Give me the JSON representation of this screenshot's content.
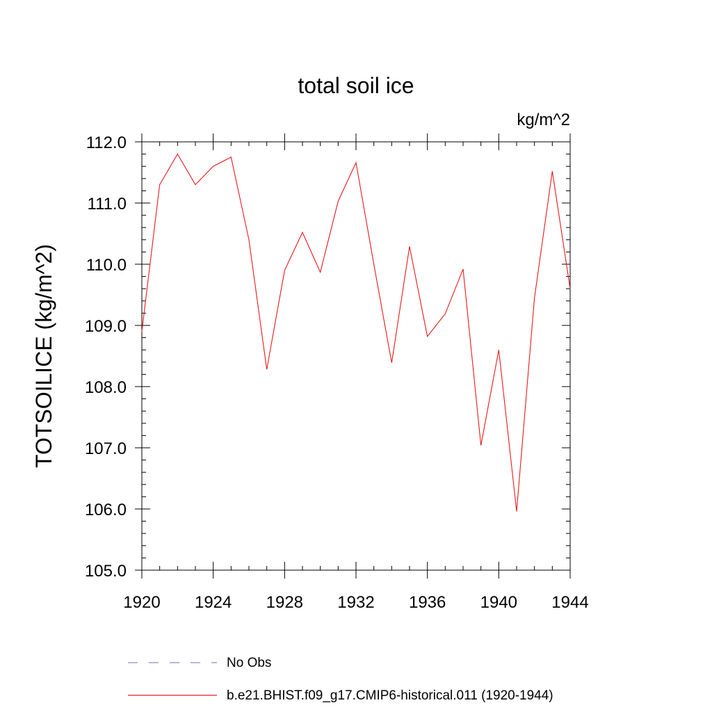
{
  "chart_data": {
    "type": "line",
    "title": "total soil ice",
    "units": "kg/m^2",
    "ylabel": "TOTSOILICE  (kg/m^2)",
    "xlabel": "",
    "xlim": [
      1920,
      1944
    ],
    "ylim": [
      105.0,
      112.0
    ],
    "x_ticks": [
      "1920",
      "1924",
      "1928",
      "1932",
      "1936",
      "1940",
      "1944"
    ],
    "y_ticks": [
      "105.0",
      "106.0",
      "107.0",
      "108.0",
      "109.0",
      "110.0",
      "111.0",
      "112.0"
    ],
    "grid": false,
    "legend_position": "bottom",
    "series": [
      {
        "name": "b.e21.BHIST.f09_g17.CMIP6-historical.011 (1920-1944)",
        "color": "#e8191a",
        "style": "solid",
        "x": [
          1920,
          1921,
          1922,
          1923,
          1924,
          1925,
          1926,
          1927,
          1928,
          1929,
          1930,
          1931,
          1932,
          1933,
          1934,
          1935,
          1936,
          1937,
          1938,
          1939,
          1940,
          1941,
          1942,
          1943,
          1944
        ],
        "values": [
          108.9,
          111.3,
          111.8,
          111.3,
          111.6,
          111.75,
          110.4,
          108.28,
          109.9,
          110.52,
          109.87,
          111.03,
          111.66,
          110.0,
          108.39,
          110.29,
          108.82,
          109.19,
          109.92,
          107.04,
          108.6,
          105.96,
          109.45,
          111.52,
          109.6
        ]
      }
    ],
    "legend": [
      {
        "label": "No Obs",
        "color": "#8a8ac8",
        "style": "dashed"
      },
      {
        "label": "b.e21.BHIST.f09_g17.CMIP6-historical.011 (1920-1944)",
        "color": "#e8191a",
        "style": "solid"
      }
    ]
  }
}
